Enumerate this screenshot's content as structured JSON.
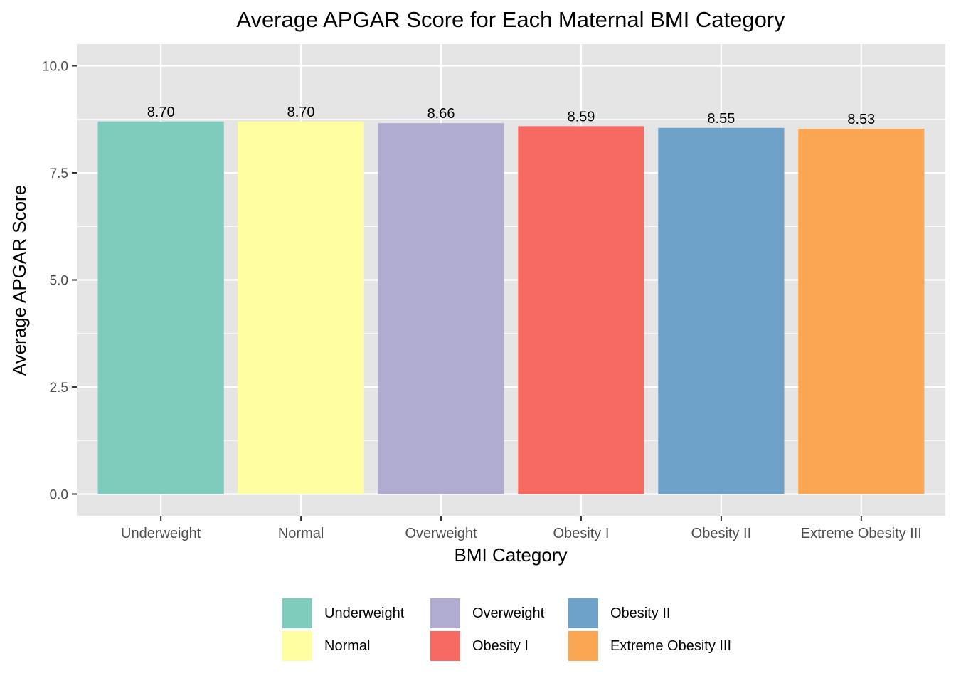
{
  "chart_data": {
    "type": "bar",
    "title": "Average APGAR Score for Each Maternal BMI Category",
    "xlabel": "BMI Category",
    "ylabel": "Average APGAR Score",
    "categories": [
      "Underweight",
      "Normal",
      "Overweight",
      "Obesity I",
      "Obesity II",
      "Extreme Obesity III"
    ],
    "values": [
      8.7,
      8.7,
      8.66,
      8.59,
      8.55,
      8.53
    ],
    "value_labels": [
      "8.70",
      "8.70",
      "8.66",
      "8.59",
      "8.55",
      "8.53"
    ],
    "colors": [
      "#7fcbbc",
      "#ffffa1",
      "#b0abd0",
      "#f66a61",
      "#6ea2c9",
      "#fba653"
    ],
    "ylim": [
      0,
      10
    ],
    "yticks": [
      0,
      2.5,
      5,
      7.5,
      10
    ],
    "ytick_labels": [
      "0.0",
      "2.5",
      "5.0",
      "7.5",
      "10.0"
    ],
    "grid": true,
    "panel_background": "#e5e5e5",
    "legend_position": "bottom",
    "legend_order": [
      "Underweight",
      "Normal",
      "Overweight",
      "Obesity I",
      "Obesity II",
      "Extreme Obesity III"
    ]
  }
}
